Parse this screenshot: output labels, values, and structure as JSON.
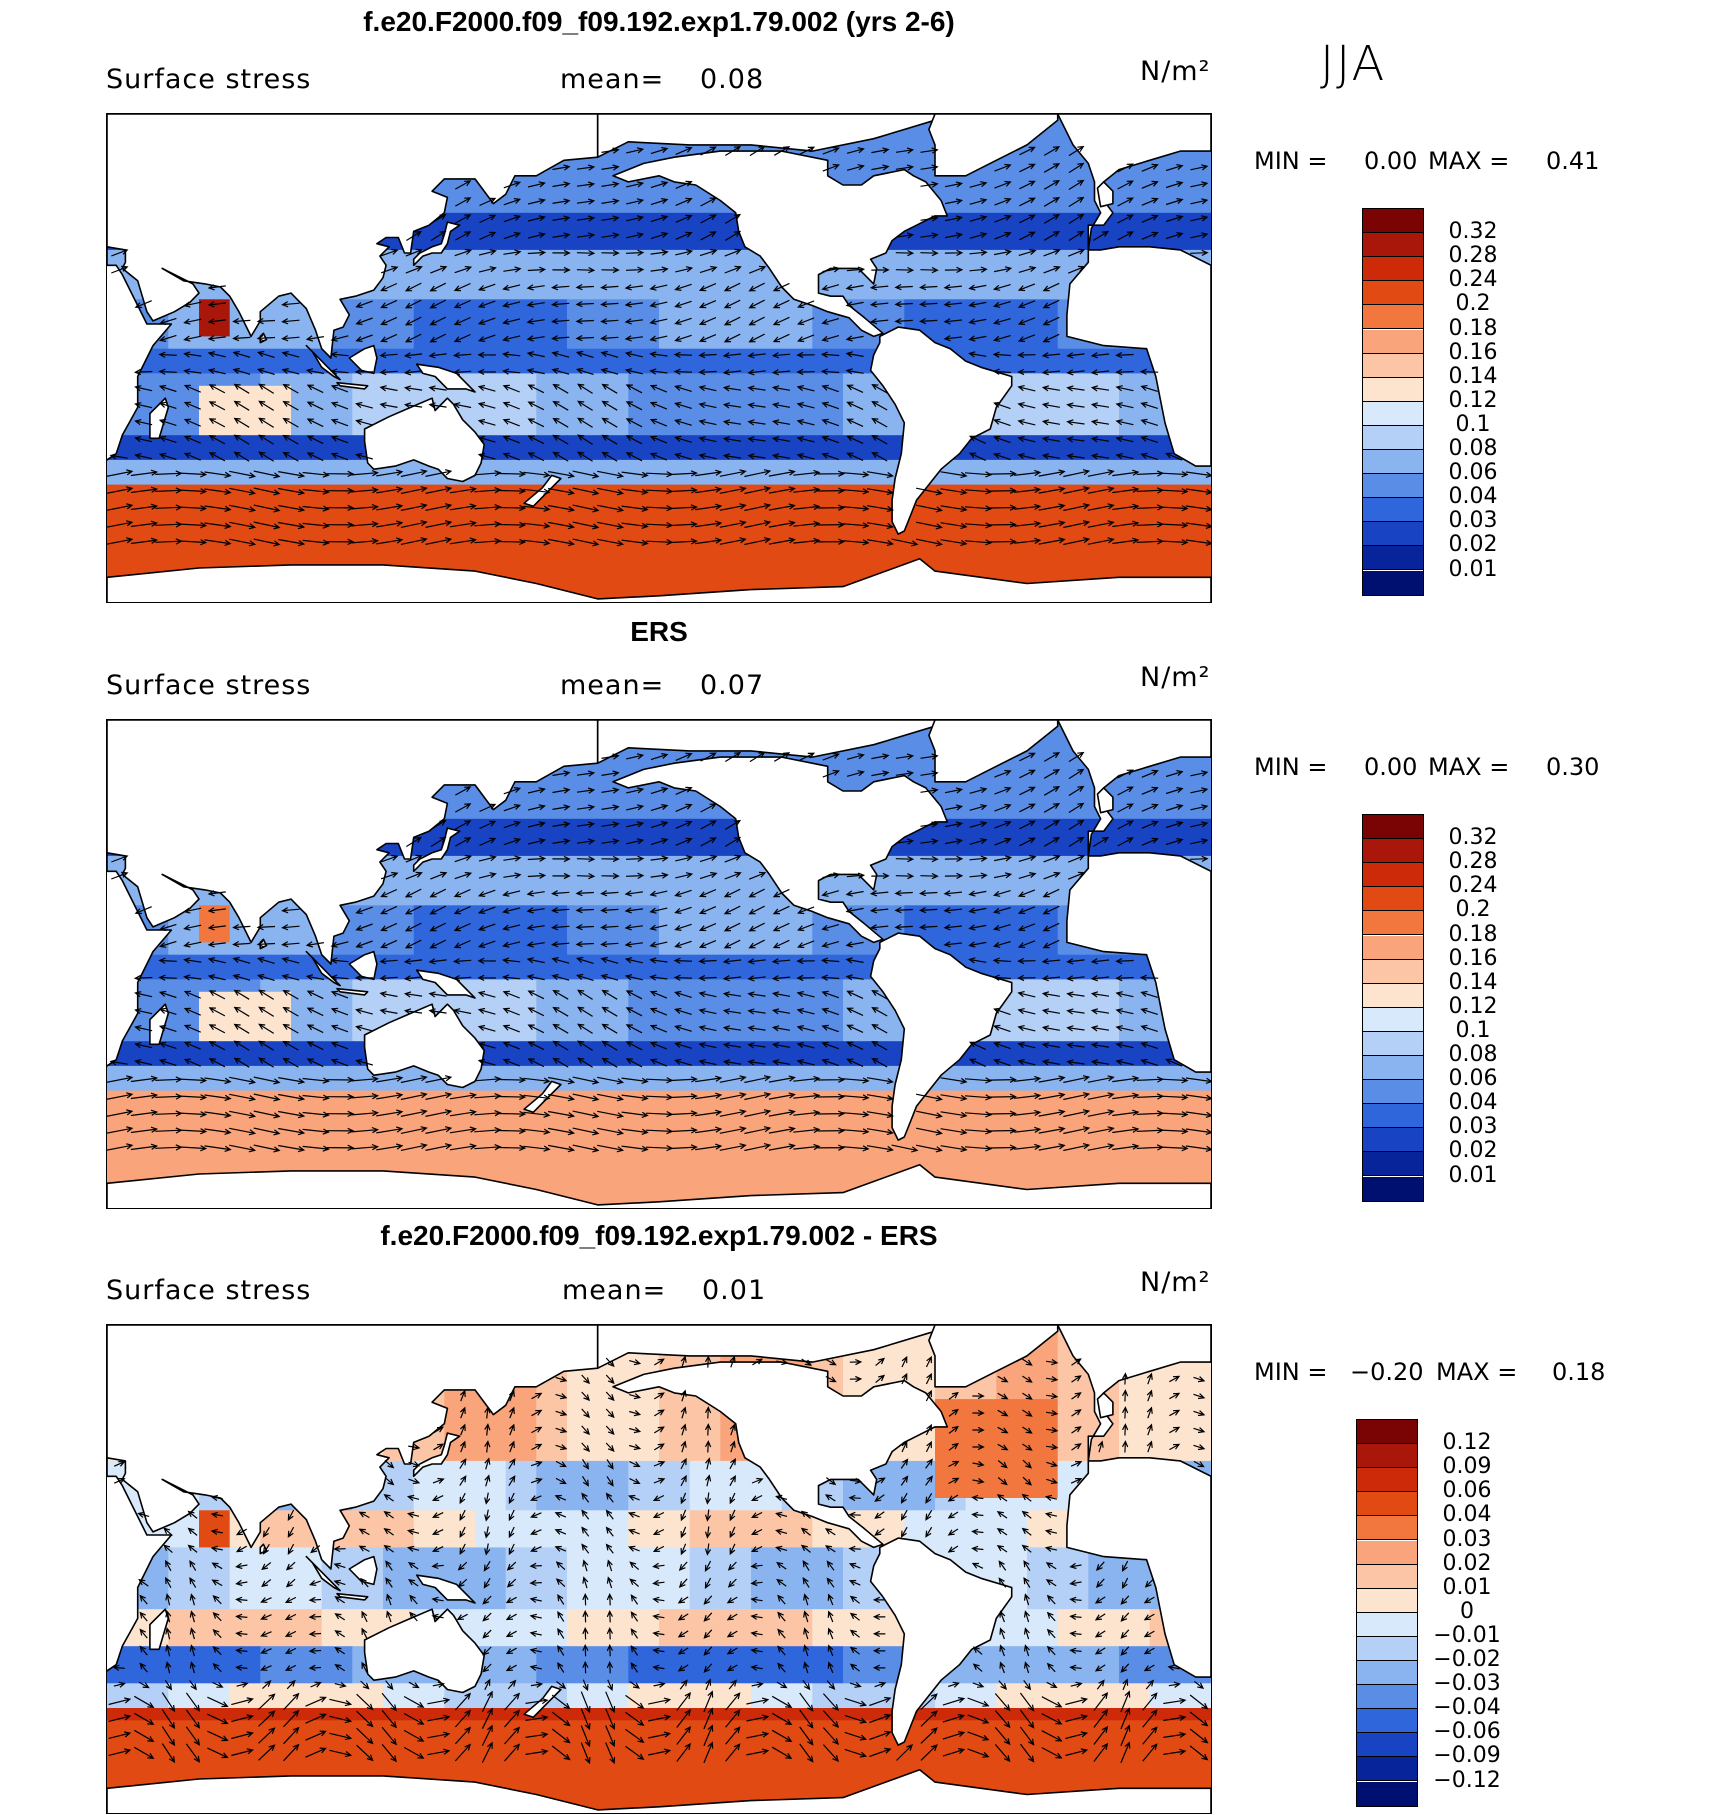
{
  "season": "JJA",
  "panels": [
    {
      "title": "f.e20.F2000.f09_f09.192.exp1.79.002 (yrs 2-6)",
      "left_label": "Surface stress",
      "mean_label": "mean=",
      "mean_value": "0.08",
      "units": "N/m²",
      "min_label": "MIN =",
      "min_value": "0.00",
      "max_label": "MAX =",
      "max_value": "0.41",
      "colorbar_levels": [
        "0.32",
        "0.28",
        "0.24",
        "0.2",
        "0.18",
        "0.16",
        "0.14",
        "0.12",
        "0.1",
        "0.08",
        "0.06",
        "0.04",
        "0.03",
        "0.02",
        "0.01"
      ]
    },
    {
      "title": "ERS",
      "left_label": "Surface stress",
      "mean_label": "mean=",
      "mean_value": "0.07",
      "units": "N/m²",
      "min_label": "MIN =",
      "min_value": "0.00",
      "max_label": "MAX =",
      "max_value": "0.30",
      "colorbar_levels": [
        "0.32",
        "0.28",
        "0.24",
        "0.2",
        "0.18",
        "0.16",
        "0.14",
        "0.12",
        "0.1",
        "0.08",
        "0.06",
        "0.04",
        "0.03",
        "0.02",
        "0.01"
      ]
    },
    {
      "title": "f.e20.F2000.f09_f09.192.exp1.79.002 - ERS",
      "left_label": "Surface stress",
      "mean_label": "mean=",
      "mean_value": "0.01",
      "units": "N/m²",
      "min_label": "MIN =",
      "min_value": "−0.20",
      "max_label": "MAX =",
      "max_value": "0.18",
      "colorbar_levels": [
        "0.12",
        "0.09",
        "0.06",
        "0.04",
        "0.03",
        "0.02",
        "0.01",
        "0",
        "−0.01",
        "−0.02",
        "−0.03",
        "−0.04",
        "−0.06",
        "−0.09",
        "−0.12"
      ]
    }
  ],
  "colors": {
    "sequential": [
      "#7a0403",
      "#a8170a",
      "#cc2a08",
      "#e24a14",
      "#f2773f",
      "#f9a47a",
      "#fcc6a6",
      "#fde4cf",
      "#d8e9fb",
      "#b4d0f6",
      "#8ab4f0",
      "#5a8ee6",
      "#2f66dc",
      "#1844c4",
      "#08249a",
      "#001070"
    ],
    "diverging": [
      "#7a0403",
      "#a8170a",
      "#cc2a08",
      "#e24a14",
      "#f2773f",
      "#f9a47a",
      "#fcc6a6",
      "#fde4cf",
      "#d8e9fb",
      "#b4d0f6",
      "#8ab4f0",
      "#5a8ee6",
      "#2f66dc",
      "#1844c4",
      "#08249a",
      "#001070"
    ]
  },
  "chart_data": [
    {
      "type": "heatmap",
      "title": "f.e20.F2000.f09_f09.192.exp1.79.002 (yrs 2-6)",
      "variable": "Surface stress",
      "units": "N/m²",
      "mean": 0.08,
      "min": 0.0,
      "max": 0.41,
      "colorbar_levels": [
        0.32,
        0.28,
        0.24,
        0.2,
        0.18,
        0.16,
        0.14,
        0.12,
        0.1,
        0.08,
        0.06,
        0.04,
        0.03,
        0.02,
        0.01
      ],
      "overlay": "wind stress vectors"
    },
    {
      "type": "heatmap",
      "title": "ERS",
      "variable": "Surface stress",
      "units": "N/m²",
      "mean": 0.07,
      "min": 0.0,
      "max": 0.3,
      "colorbar_levels": [
        0.32,
        0.28,
        0.24,
        0.2,
        0.18,
        0.16,
        0.14,
        0.12,
        0.1,
        0.08,
        0.06,
        0.04,
        0.03,
        0.02,
        0.01
      ],
      "overlay": "wind stress vectors"
    },
    {
      "type": "heatmap",
      "title": "f.e20.F2000.f09_f09.192.exp1.79.002 - ERS",
      "variable": "Surface stress",
      "units": "N/m²",
      "mean": 0.01,
      "min": -0.2,
      "max": 0.18,
      "colorbar_levels": [
        0.12,
        0.09,
        0.06,
        0.04,
        0.03,
        0.02,
        0.01,
        0,
        -0.01,
        -0.02,
        -0.03,
        -0.04,
        -0.06,
        -0.09,
        -0.12
      ],
      "overlay": "wind stress difference vectors"
    }
  ]
}
